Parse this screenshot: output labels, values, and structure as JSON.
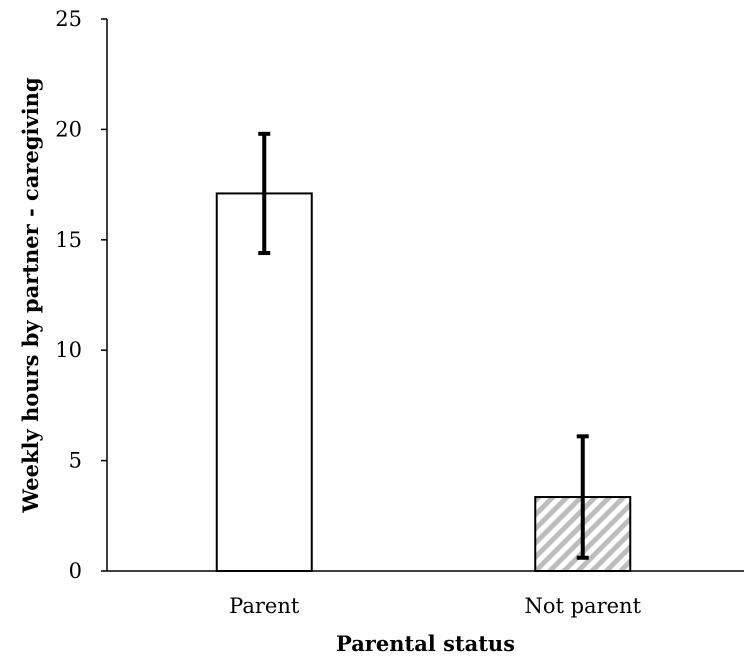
{
  "chart_data": {
    "type": "bar",
    "categories": [
      "Parent",
      "Not parent"
    ],
    "values": [
      17.1,
      3.35
    ],
    "error_bars": [
      {
        "low": 14.4,
        "high": 19.8
      },
      {
        "low": 0.6,
        "high": 6.1
      }
    ],
    "bar_fills": [
      "plain-white",
      "diagonal-gray-hatch"
    ],
    "title": "",
    "xlabel": "Parental status",
    "ylabel": "Weekly hours by partner - caregiving",
    "ylim": [
      0,
      25
    ],
    "yticks": [
      0,
      5,
      10,
      15,
      20,
      25
    ],
    "grid": false,
    "legend": "none"
  },
  "colors": {
    "axis": "#000000",
    "bar_edge": "#000000",
    "bar_fill": "#ffffff",
    "hatch": "#bdbdbd",
    "error_bar": "#000000"
  }
}
